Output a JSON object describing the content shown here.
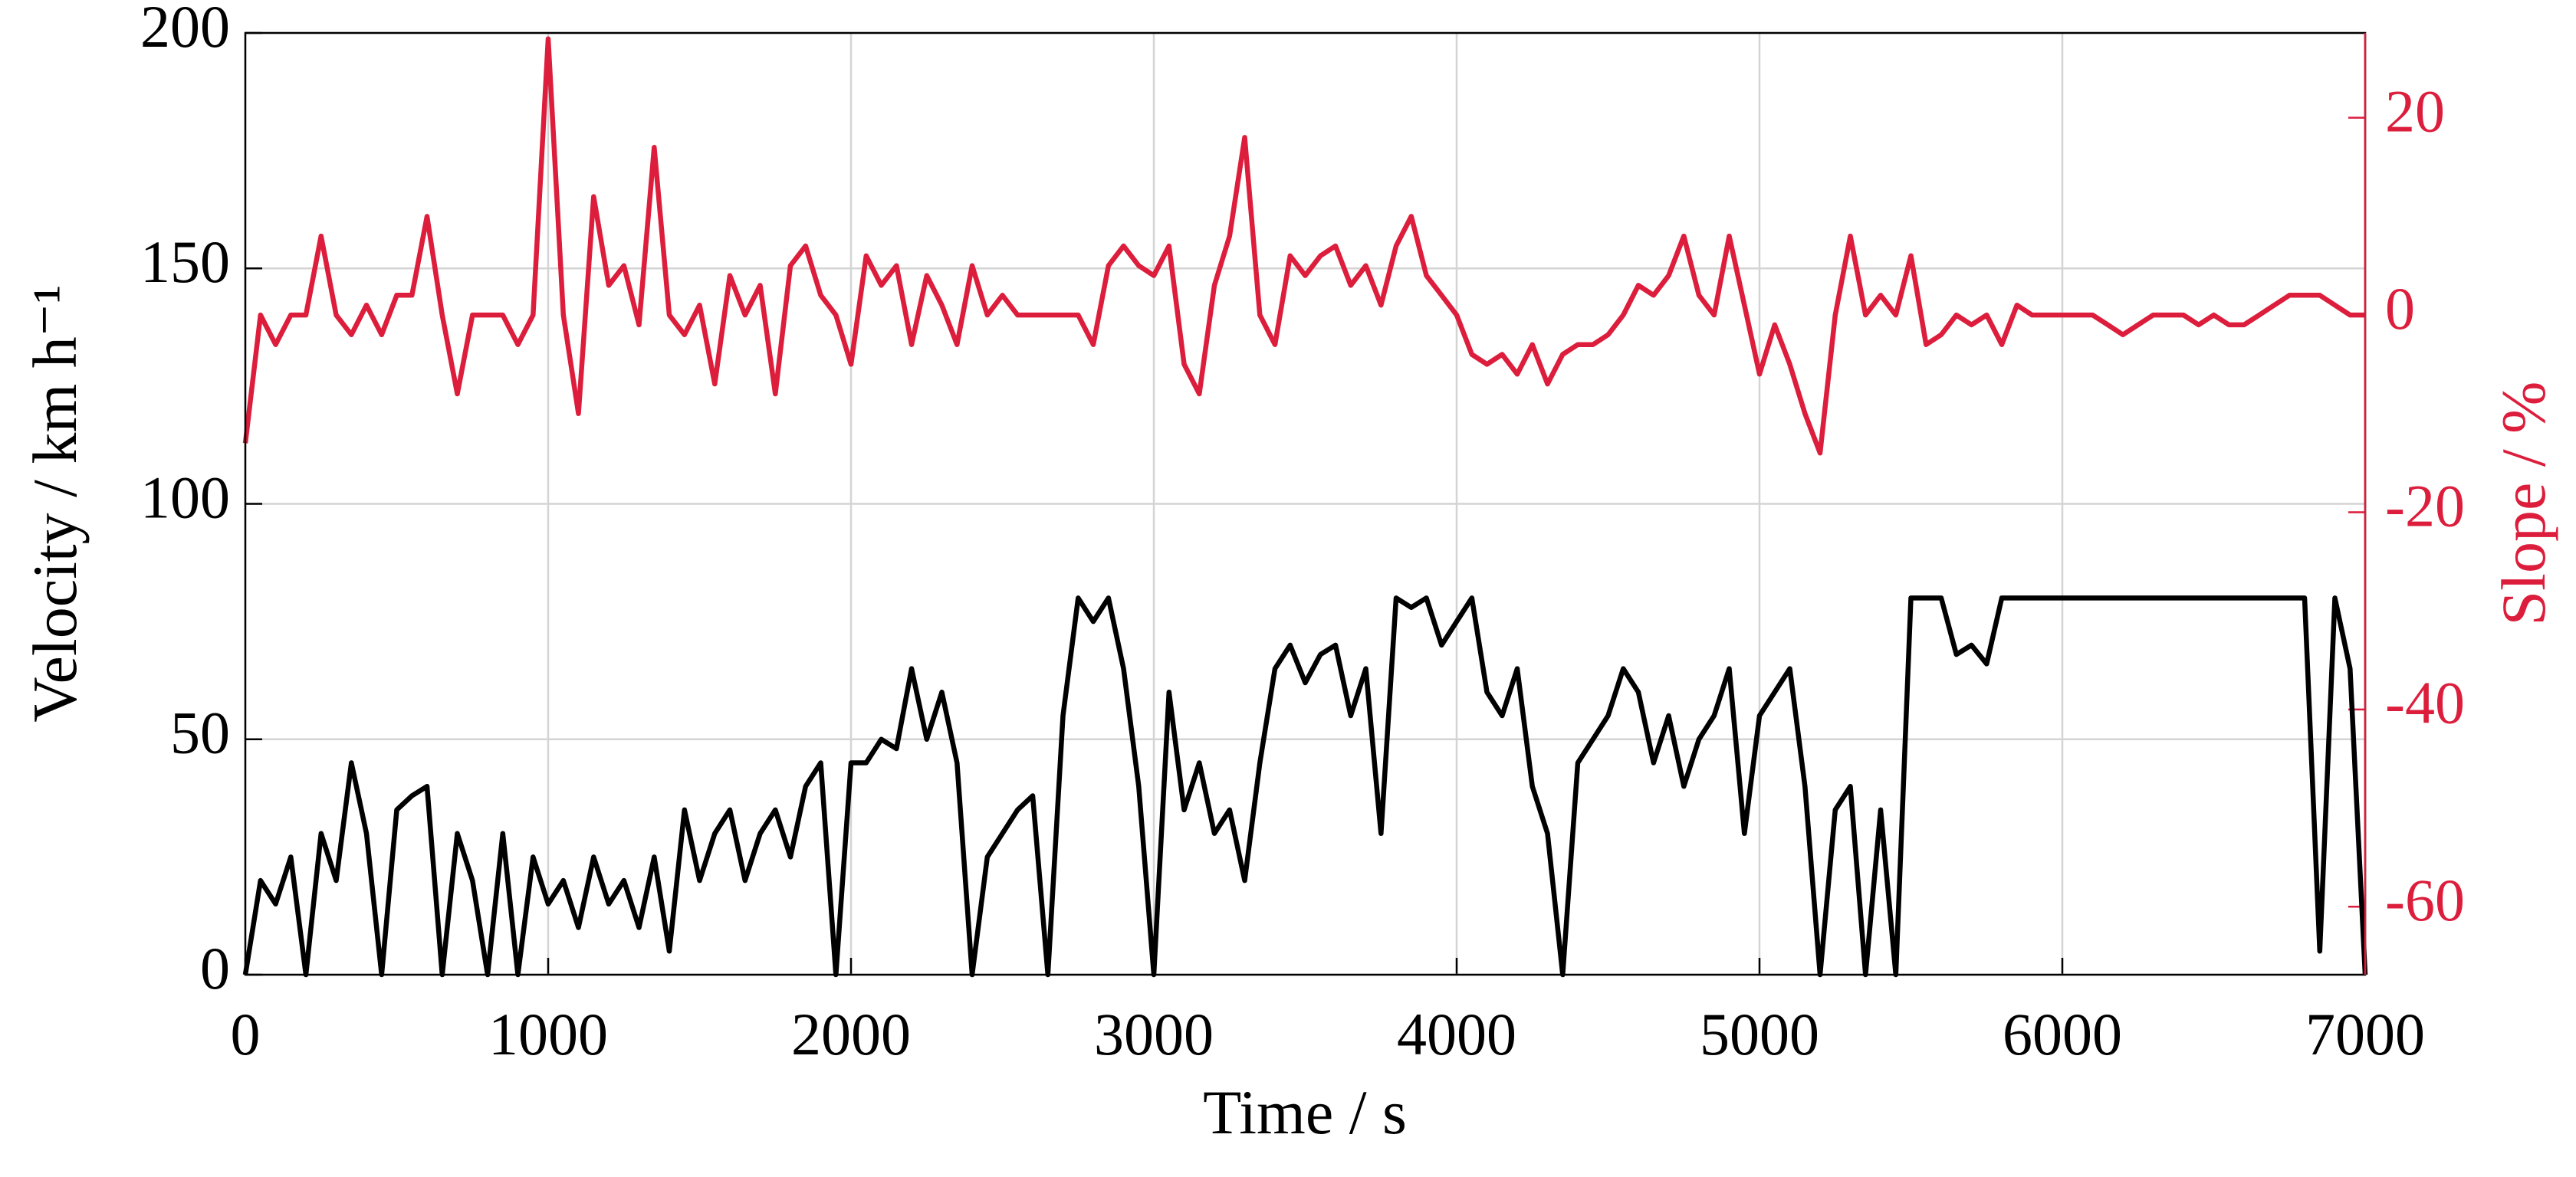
{
  "chart_data": {
    "type": "line",
    "x_label": "Time / s",
    "y_label": "Velocity / km h⁻¹",
    "y2_label": "Slope / %",
    "x": [
      0,
      50,
      100,
      150,
      200,
      250,
      300,
      350,
      400,
      450,
      500,
      550,
      600,
      650,
      700,
      750,
      800,
      850,
      900,
      950,
      1000,
      1050,
      1100,
      1150,
      1200,
      1250,
      1300,
      1350,
      1400,
      1450,
      1500,
      1550,
      1600,
      1650,
      1700,
      1750,
      1800,
      1850,
      1900,
      1950,
      2000,
      2050,
      2100,
      2150,
      2200,
      2250,
      2300,
      2350,
      2400,
      2450,
      2500,
      2550,
      2600,
      2650,
      2700,
      2750,
      2800,
      2850,
      2900,
      2950,
      3000,
      3050,
      3100,
      3150,
      3200,
      3250,
      3300,
      3350,
      3400,
      3450,
      3500,
      3550,
      3600,
      3650,
      3700,
      3750,
      3800,
      3850,
      3900,
      3950,
      4000,
      4050,
      4100,
      4150,
      4200,
      4250,
      4300,
      4350,
      4400,
      4450,
      4500,
      4550,
      4600,
      4650,
      4700,
      4750,
      4800,
      4850,
      4900,
      4950,
      5000,
      5050,
      5100,
      5150,
      5200,
      5250,
      5300,
      5350,
      5400,
      5450,
      5500,
      5550,
      5600,
      5650,
      5700,
      5750,
      5800,
      5850,
      5900,
      5950,
      6000,
      6050,
      6100,
      6150,
      6200,
      6250,
      6300,
      6350,
      6400,
      6450,
      6500,
      6550,
      6600,
      6650,
      6700,
      6750,
      6800,
      6850,
      6900,
      6950,
      7000
    ],
    "series": [
      {
        "name": "Velocity",
        "color": "#000000",
        "axis": "y",
        "values": [
          0,
          20,
          15,
          25,
          0,
          30,
          20,
          45,
          30,
          0,
          35,
          38,
          40,
          0,
          30,
          20,
          0,
          30,
          0,
          25,
          15,
          20,
          10,
          25,
          15,
          20,
          10,
          25,
          5,
          35,
          20,
          30,
          35,
          20,
          30,
          35,
          25,
          40,
          45,
          0,
          45,
          45,
          50,
          48,
          65,
          50,
          60,
          45,
          0,
          25,
          30,
          35,
          38,
          0,
          55,
          80,
          75,
          80,
          65,
          40,
          0,
          60,
          35,
          45,
          30,
          35,
          20,
          45,
          65,
          70,
          62,
          68,
          70,
          55,
          65,
          30,
          80,
          78,
          80,
          70,
          75,
          80,
          60,
          55,
          65,
          40,
          30,
          0,
          45,
          50,
          55,
          65,
          60,
          45,
          55,
          40,
          50,
          55,
          65,
          30,
          55,
          60,
          65,
          40,
          0,
          35,
          40,
          0,
          35,
          0,
          80,
          80,
          80,
          68,
          70,
          66,
          80,
          80,
          80,
          80,
          80,
          80,
          80,
          80,
          80,
          80,
          80,
          80,
          80,
          80,
          80,
          80,
          80,
          80,
          80,
          80,
          80,
          5,
          80,
          65,
          0
        ]
      },
      {
        "name": "Slope",
        "color": "#dc1e3c",
        "axis": "y2",
        "values": [
          -13,
          0,
          -3,
          0,
          0,
          8,
          0,
          -2,
          1,
          -2,
          2,
          2,
          10,
          0,
          -8,
          0,
          0,
          0,
          -3,
          0,
          28,
          0,
          -10,
          12,
          3,
          5,
          -1,
          17,
          0,
          -2,
          1,
          -7,
          4,
          0,
          3,
          -8,
          5,
          7,
          2,
          0,
          -5,
          6,
          3,
          5,
          -3,
          4,
          1,
          -3,
          5,
          0,
          2,
          0,
          0,
          0,
          0,
          0,
          -3,
          5,
          7,
          5,
          4,
          7,
          -5,
          -8,
          3,
          8,
          18,
          0,
          -3,
          6,
          4,
          6,
          7,
          3,
          5,
          1,
          7,
          10,
          4,
          2,
          0,
          -4,
          -5,
          -4,
          -6,
          -3,
          -7,
          -4,
          -3,
          -3,
          -2,
          0,
          3,
          2,
          4,
          8,
          2,
          0,
          8,
          1,
          -6,
          -1,
          -5,
          -10,
          -14,
          0,
          8,
          0,
          2,
          0,
          6,
          -3,
          -2,
          0,
          -1,
          0,
          -3,
          1,
          0,
          0,
          0,
          0,
          0,
          -1,
          -2,
          -1,
          0,
          0,
          0,
          -1,
          0,
          -1,
          -1,
          0,
          1,
          2,
          2,
          2,
          1,
          0,
          0
        ]
      }
    ],
    "xlim": [
      0,
      7000
    ],
    "xticks": [
      0,
      1000,
      2000,
      3000,
      4000,
      5000,
      6000,
      7000
    ],
    "ylim": [
      0,
      200
    ],
    "yticks": [
      0,
      50,
      100,
      150,
      200
    ],
    "y2lim": [
      -66.9,
      28.6
    ],
    "y2ticks": [
      -60,
      -40,
      -20,
      0,
      20
    ],
    "y2_color": "#dc1e3c",
    "grid": true
  }
}
